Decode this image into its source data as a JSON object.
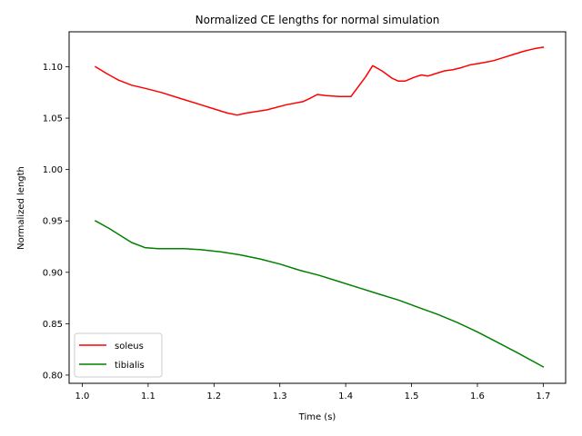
{
  "chart_data": {
    "type": "line",
    "title": "Normalized CE lengths for normal simulation",
    "xlabel": "Time (s)",
    "ylabel": "Normalized length",
    "xlim": [
      0.98,
      1.734
    ],
    "ylim": [
      0.792,
      1.134
    ],
    "xticks": [
      1.0,
      1.1,
      1.2,
      1.3,
      1.4,
      1.5,
      1.6,
      1.7
    ],
    "xtick_labels": [
      "1.0",
      "1.1",
      "1.2",
      "1.3",
      "1.4",
      "1.5",
      "1.6",
      "1.7"
    ],
    "yticks": [
      0.8,
      0.85,
      0.9,
      0.95,
      1.0,
      1.05,
      1.1
    ],
    "ytick_labels": [
      "0.80",
      "0.85",
      "0.90",
      "0.95",
      "1.00",
      "1.05",
      "1.10"
    ],
    "grid": false,
    "legend_position": "bottom-left",
    "series": [
      {
        "name": "soleus",
        "color": "#ff0000",
        "x": [
          1.02,
          1.038,
          1.055,
          1.075,
          1.095,
          1.12,
          1.15,
          1.18,
          1.2,
          1.22,
          1.235,
          1.25,
          1.28,
          1.31,
          1.335,
          1.345,
          1.357,
          1.37,
          1.39,
          1.408,
          1.43,
          1.441,
          1.455,
          1.47,
          1.48,
          1.49,
          1.505,
          1.515,
          1.525,
          1.535,
          1.55,
          1.562,
          1.575,
          1.59,
          1.6,
          1.61,
          1.625,
          1.64,
          1.655,
          1.67,
          1.683,
          1.69,
          1.7
        ],
        "y": [
          1.1,
          1.093,
          1.087,
          1.082,
          1.079,
          1.075,
          1.069,
          1.063,
          1.059,
          1.055,
          1.053,
          1.055,
          1.058,
          1.063,
          1.066,
          1.069,
          1.073,
          1.072,
          1.071,
          1.071,
          1.09,
          1.101,
          1.096,
          1.089,
          1.086,
          1.086,
          1.09,
          1.092,
          1.091,
          1.093,
          1.096,
          1.097,
          1.099,
          1.102,
          1.103,
          1.104,
          1.106,
          1.109,
          1.112,
          1.115,
          1.117,
          1.118,
          1.119
        ]
      },
      {
        "name": "tibialis",
        "color": "#008000",
        "x": [
          1.02,
          1.04,
          1.06,
          1.075,
          1.095,
          1.115,
          1.135,
          1.155,
          1.18,
          1.21,
          1.24,
          1.27,
          1.3,
          1.33,
          1.36,
          1.39,
          1.42,
          1.45,
          1.48,
          1.51,
          1.54,
          1.57,
          1.6,
          1.63,
          1.66,
          1.7
        ],
        "y": [
          0.95,
          0.943,
          0.935,
          0.929,
          0.924,
          0.923,
          0.923,
          0.923,
          0.922,
          0.92,
          0.917,
          0.913,
          0.908,
          0.902,
          0.897,
          0.891,
          0.885,
          0.879,
          0.873,
          0.866,
          0.859,
          0.851,
          0.842,
          0.832,
          0.822,
          0.808
        ]
      }
    ]
  }
}
